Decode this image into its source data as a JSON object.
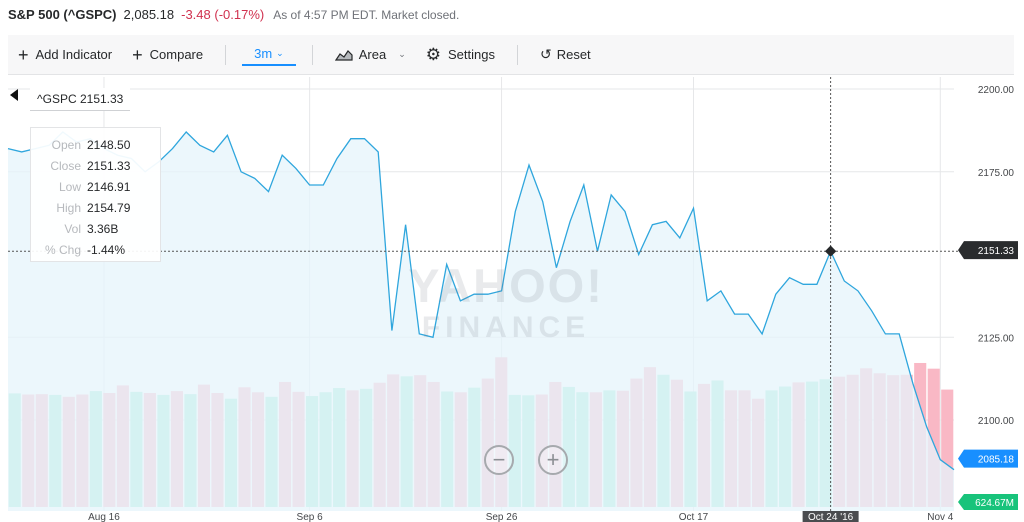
{
  "quote": {
    "name": "S&P 500 (^GSPC)",
    "price": "2,085.18",
    "change": "-3.48 (-0.17%)",
    "time": "As of 4:57 PM EDT. Market closed."
  },
  "toolbar": {
    "add_indicator": "Add Indicator",
    "compare": "Compare",
    "range": "3m",
    "area": "Area",
    "settings": "Settings",
    "reset": "Reset"
  },
  "tooltip": {
    "label": "^GSPC 2151.33",
    "rows": [
      {
        "key": "Open",
        "value": "2148.50"
      },
      {
        "key": "Close",
        "value": "2151.33"
      },
      {
        "key": "Low",
        "value": "2146.91"
      },
      {
        "key": "High",
        "value": "2154.79"
      },
      {
        "key": "Vol",
        "value": "3.36B"
      },
      {
        "key": "% Chg",
        "value": "-1.44%"
      }
    ]
  },
  "watermark": {
    "brand": "YAHOO!",
    "sub": "FINANCE"
  },
  "colors": {
    "line": "#2fa6dd",
    "area": "#e6f4fb",
    "volume_up": "#a3ead6",
    "volume_down": "#f9b8c5",
    "last_price": "#188fff",
    "last_volume": "#18c37b",
    "marker": "#26282a",
    "negative": "#d0314f"
  },
  "chart_data": {
    "type": "area",
    "price_ylim": [
      2075,
      2205
    ],
    "y_ticks": [
      "2200.00",
      "2175.00",
      "2151.33",
      "2125.00",
      "2100.00"
    ],
    "x_ticks": [
      "Aug 16",
      "Sep 6",
      "Sep 26",
      "Oct 17",
      "Oct 24 '16",
      "Nov 4"
    ],
    "last_price_label": "2085.18",
    "last_volume_label": "624.67M",
    "grid": true,
    "closes": [
      2182,
      2181,
      2182,
      2183,
      2187,
      2184,
      2185,
      2182,
      2180,
      2179,
      2175,
      2178,
      2182,
      2187,
      2183,
      2181,
      2186,
      2175,
      2173,
      2169,
      2180,
      2176,
      2171,
      2171,
      2179,
      2185,
      2185,
      2181,
      2127,
      2159,
      2126,
      2125,
      2147,
      2136,
      2138,
      2138,
      2139,
      2163,
      2177,
      2166,
      2146,
      2160,
      2171,
      2151,
      2168,
      2163,
      2150,
      2159,
      2160,
      2155,
      2164,
      2136,
      2139,
      2132,
      2132,
      2126,
      2138,
      2143,
      2141,
      2141,
      2151,
      2142,
      2139,
      2133,
      2126,
      2126,
      2111,
      2098,
      2088,
      2085
    ],
    "volumes": [
      2.99,
      2.96,
      2.97,
      2.95,
      2.9,
      2.96,
      3.05,
      3.0,
      3.2,
      3.03,
      3.0,
      2.95,
      3.05,
      2.97,
      3.22,
      3.0,
      2.85,
      3.15,
      3.02,
      2.9,
      3.29,
      3.03,
      2.92,
      3.02,
      3.13,
      3.07,
      3.11,
      3.27,
      3.49,
      3.44,
      3.47,
      3.29,
      3.04,
      3.02,
      3.14,
      3.38,
      3.94,
      2.95,
      2.94,
      2.96,
      3.29,
      3.16,
      3.02,
      3.02,
      3.07,
      3.06,
      3.38,
      3.68,
      3.48,
      3.35,
      3.04,
      3.24,
      3.33,
      3.07,
      3.07,
      2.85,
      3.07,
      3.17,
      3.28,
      3.3,
      3.36,
      3.43,
      3.48,
      3.65,
      3.52,
      3.47,
      3.48,
      3.79,
      3.64,
      3.09
    ],
    "down": [
      false,
      true,
      true,
      false,
      true,
      true,
      false,
      true,
      true,
      false,
      true,
      false,
      true,
      false,
      true,
      true,
      false,
      true,
      true,
      false,
      true,
      true,
      false,
      false,
      false,
      true,
      false,
      true,
      true,
      false,
      true,
      true,
      false,
      true,
      false,
      true,
      true,
      false,
      false,
      true,
      true,
      false,
      false,
      true,
      false,
      true,
      true,
      true,
      false,
      true,
      false,
      true,
      false,
      true,
      true,
      true,
      false,
      false,
      true,
      false,
      false,
      true,
      true,
      true,
      true,
      true,
      true,
      true,
      true,
      true
    ],
    "selected_index": 60
  }
}
